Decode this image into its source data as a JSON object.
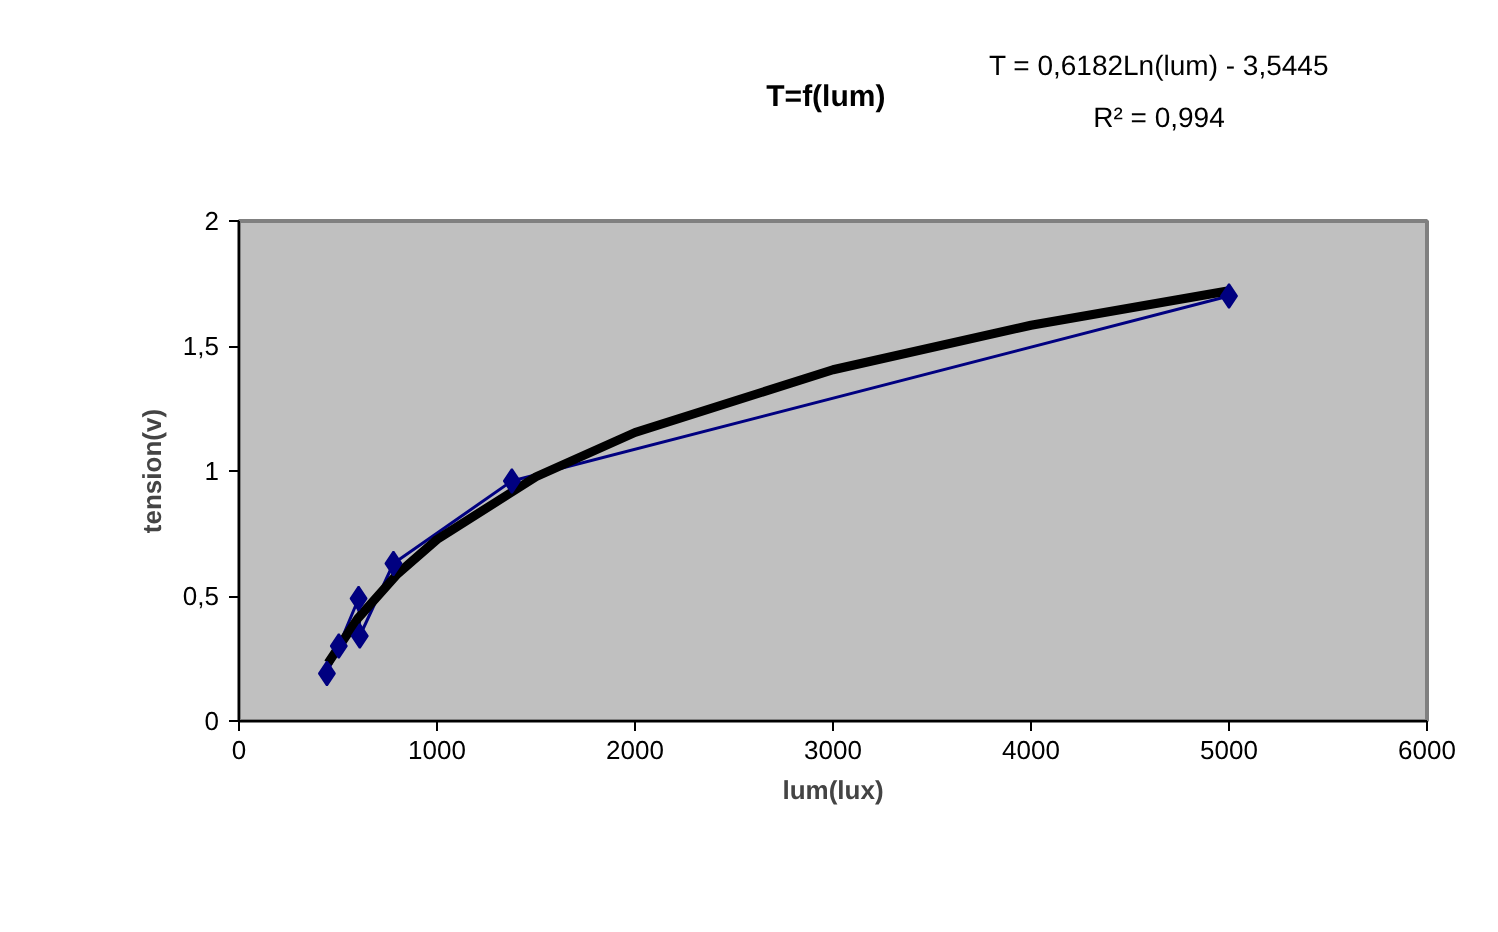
{
  "chart_data": {
    "type": "line",
    "title": "T=f(lum)",
    "xlabel": "lum(lux)",
    "ylabel": "tension(v)",
    "annotations": [
      "T = 0,6182Ln(lum) - 3,5445",
      "R² = 0,994"
    ],
    "x": [
      444,
      504,
      604,
      610,
      780,
      1378,
      5000
    ],
    "series": [
      {
        "color": "#000080",
        "marker": "diamond",
        "values": [
          0.19,
          0.3,
          0.49,
          0.34,
          0.63,
          0.96,
          1.7
        ]
      },
      {
        "color": "#000000",
        "marker": "none",
        "x": [
          450,
          600,
          800,
          1000,
          1500,
          2000,
          3000,
          4000,
          5000
        ],
        "values": [
          0.232,
          0.41,
          0.588,
          0.726,
          0.977,
          1.154,
          1.405,
          1.583,
          1.721
        ]
      }
    ],
    "xlim": [
      0,
      6000
    ],
    "xticks": [
      0,
      1000,
      2000,
      3000,
      4000,
      5000,
      6000
    ],
    "ylim": [
      0,
      2
    ],
    "yticks": [
      0,
      {
        "value": 0.5,
        "label": "0,5"
      },
      1,
      {
        "value": 1.5,
        "label": "1,5"
      },
      2
    ],
    "grid": false
  }
}
